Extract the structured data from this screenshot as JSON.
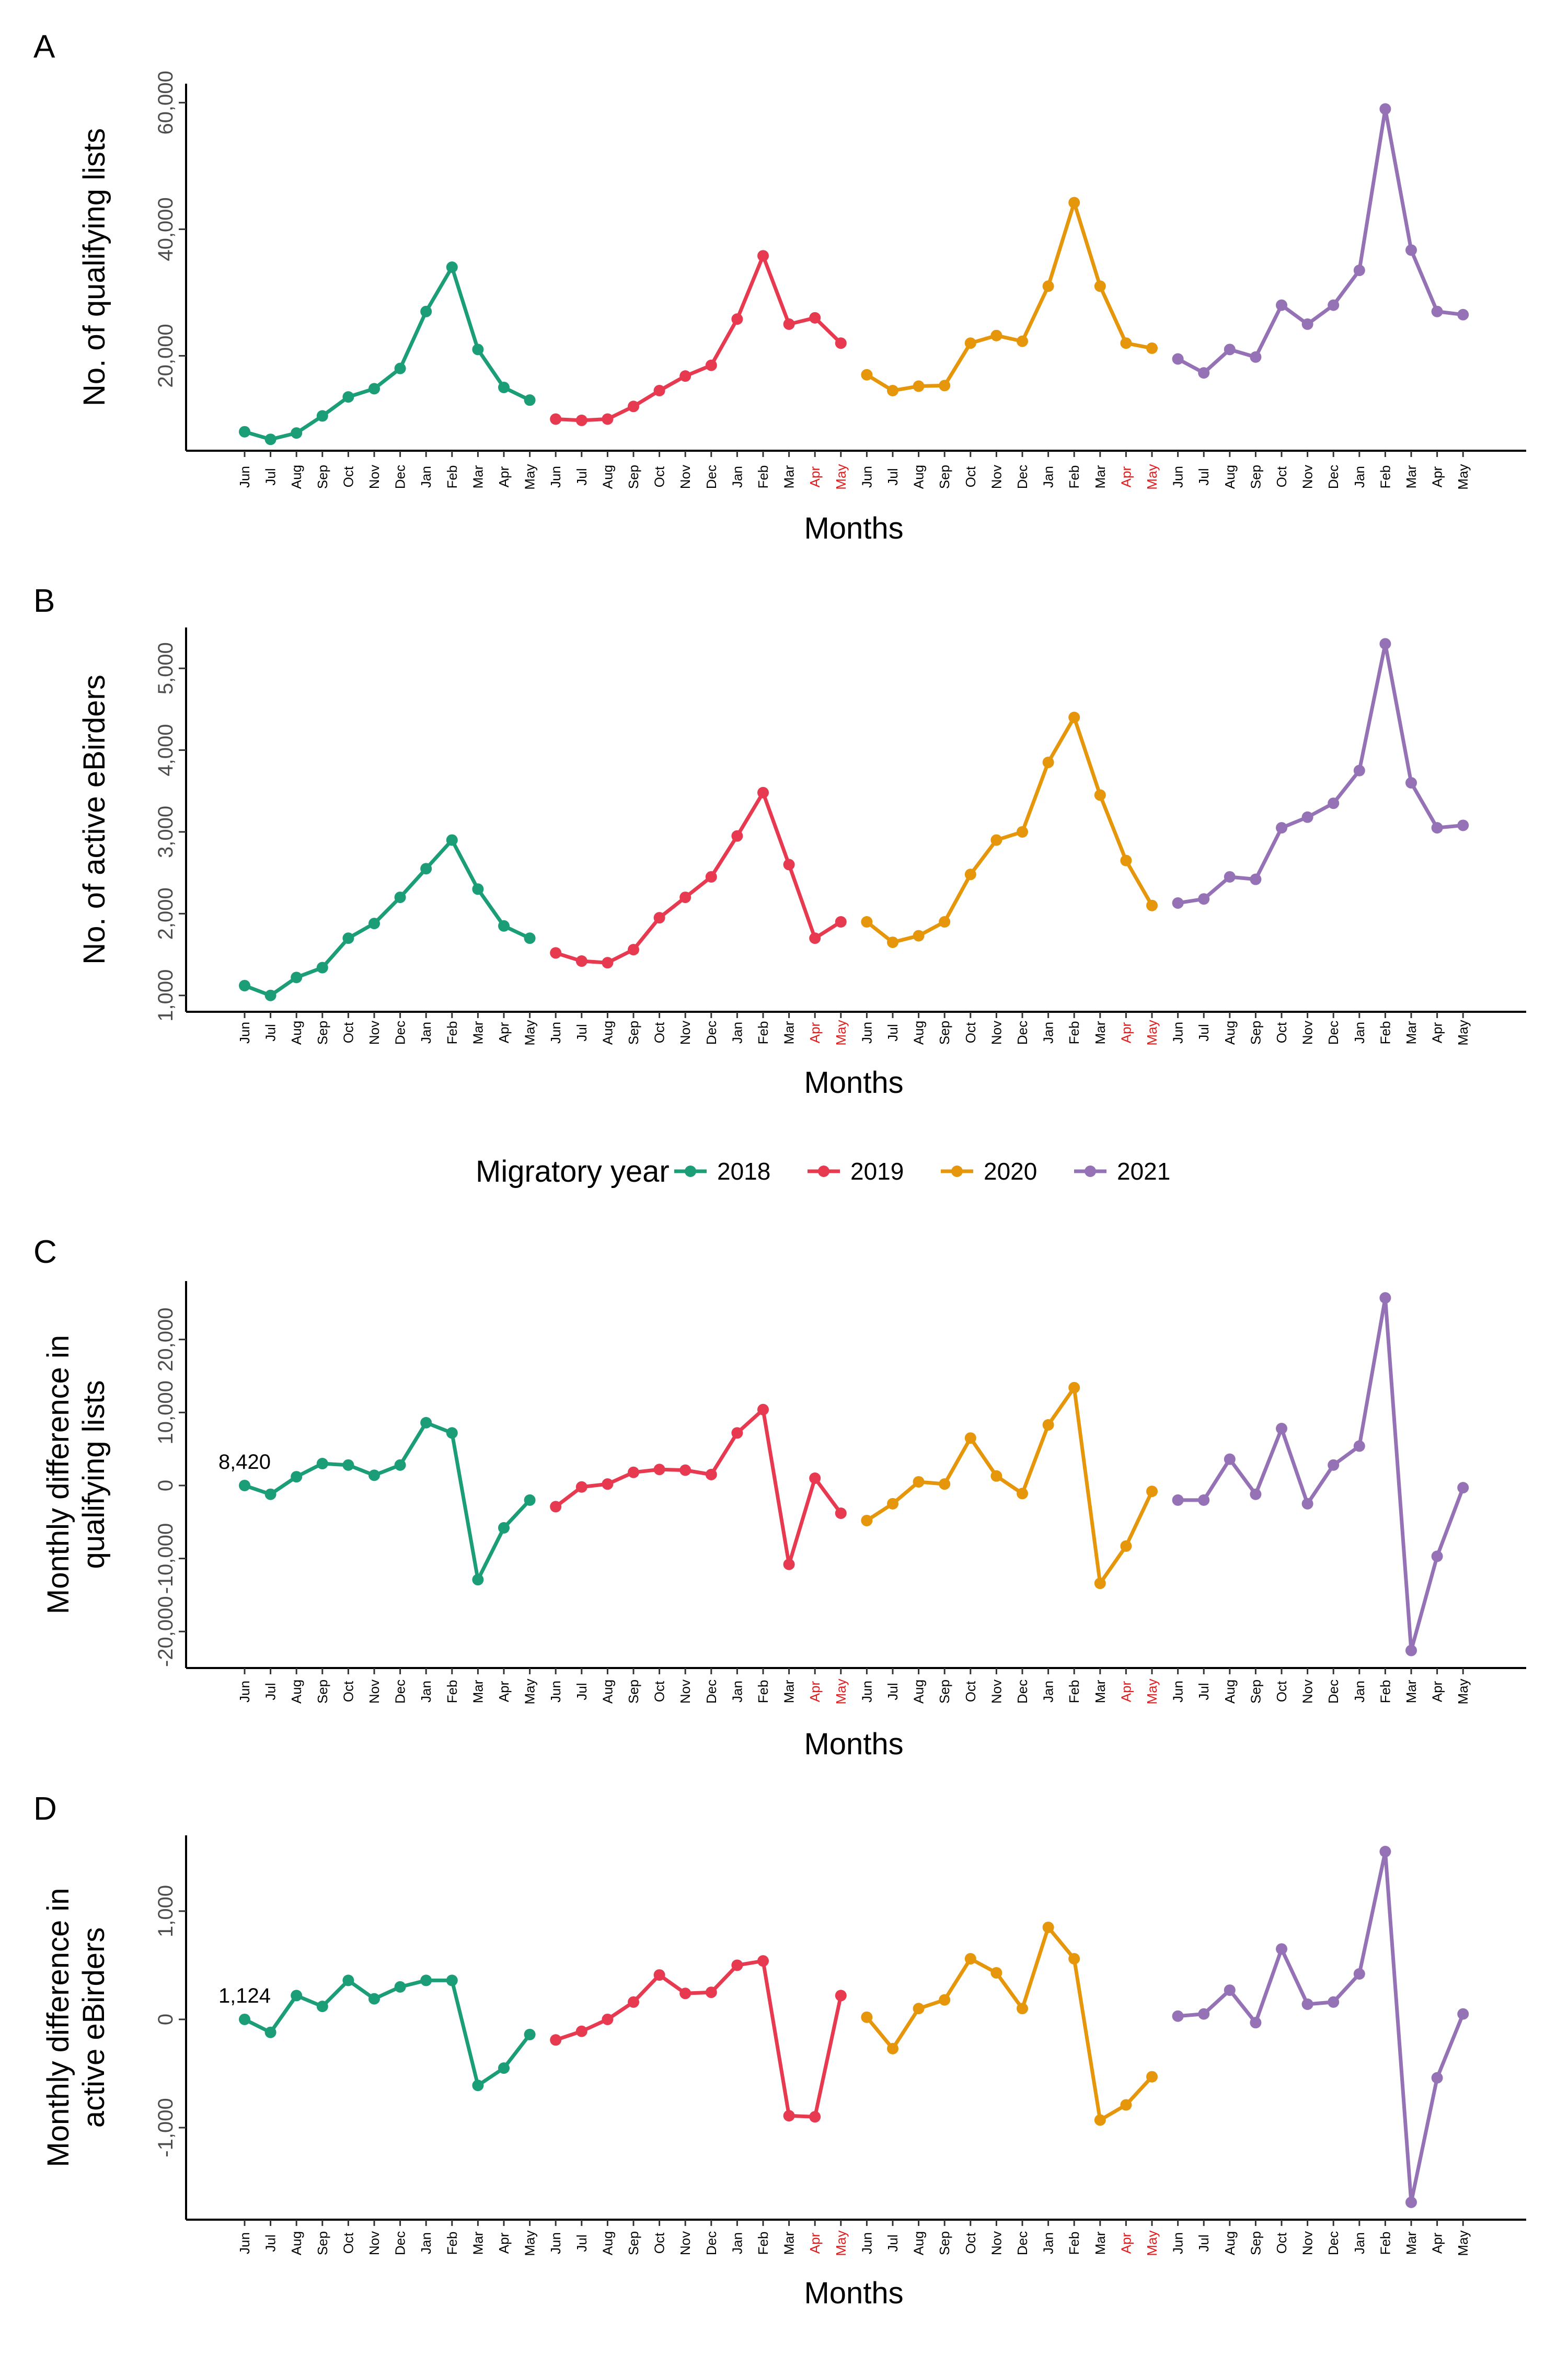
{
  "legend": {
    "title": "Migratory year",
    "items": [
      {
        "label": "2018",
        "color": "#1b9e77"
      },
      {
        "label": "2019",
        "color": "#e7394f"
      },
      {
        "label": "2020",
        "color": "#e6960a"
      },
      {
        "label": "2021",
        "color": "#9472b5"
      }
    ]
  },
  "month_labels": [
    "Jun",
    "Jul",
    "Aug",
    "Sep",
    "Oct",
    "Nov",
    "Dec",
    "Jan",
    "Feb",
    "Mar",
    "Apr",
    "May"
  ],
  "highlight_color": "#e31a1c",
  "highlighted_ticks": [
    {
      "year_index": 1,
      "months": [
        "Apr",
        "May"
      ]
    },
    {
      "year_index": 2,
      "months": [
        "Apr",
        "May"
      ]
    }
  ],
  "chart_data": [
    {
      "panel": "A",
      "type": "line",
      "xlabel": "Months",
      "ylabel": "No. of qualifying lists",
      "ylim": [
        5000,
        63000
      ],
      "yticks": [
        20000,
        40000,
        60000
      ],
      "ytick_labels": [
        "20,000",
        "40,000",
        "60,000"
      ],
      "series": [
        {
          "name": "2018",
          "values": [
            8000,
            6800,
            7800,
            10500,
            13500,
            14800,
            18000,
            27000,
            34000,
            21000,
            15000,
            13000
          ]
        },
        {
          "name": "2019",
          "values": [
            10000,
            9800,
            10000,
            12000,
            14500,
            16800,
            18500,
            25800,
            35800,
            25000,
            26000,
            22000
          ]
        },
        {
          "name": "2020",
          "values": [
            17000,
            14500,
            15200,
            15300,
            22000,
            23200,
            22300,
            31000,
            44200,
            31000,
            22000,
            21200
          ]
        },
        {
          "name": "2021",
          "values": [
            19500,
            17300,
            21000,
            19800,
            28000,
            25000,
            28000,
            33500,
            59000,
            36700,
            27000,
            26500
          ]
        }
      ]
    },
    {
      "panel": "B",
      "type": "line",
      "xlabel": "Months",
      "ylabel": "No. of active eBirders",
      "ylim": [
        800,
        5500
      ],
      "yticks": [
        1000,
        2000,
        3000,
        4000,
        5000
      ],
      "ytick_labels": [
        "1,000",
        "2,000",
        "3,000",
        "4,000",
        "5,000"
      ],
      "series": [
        {
          "name": "2018",
          "values": [
            1120,
            1000,
            1220,
            1340,
            1700,
            1880,
            2200,
            2550,
            2900,
            2300,
            1850,
            1700
          ]
        },
        {
          "name": "2019",
          "values": [
            1520,
            1420,
            1400,
            1560,
            1950,
            2200,
            2450,
            2950,
            3480,
            2600,
            1700,
            1900
          ]
        },
        {
          "name": "2020",
          "values": [
            1900,
            1650,
            1730,
            1900,
            2480,
            2900,
            3000,
            3850,
            4400,
            3450,
            2650,
            2100
          ]
        },
        {
          "name": "2021",
          "values": [
            2130,
            2180,
            2450,
            2420,
            3050,
            3180,
            3350,
            3750,
            5300,
            3600,
            3050,
            3080
          ]
        }
      ]
    },
    {
      "panel": "C",
      "type": "line",
      "xlabel": "Months",
      "ylabel": "Monthly difference in\nqualifying lists",
      "ylim": [
        -25000,
        28000
      ],
      "yticks": [
        -20000,
        -10000,
        0,
        10000,
        20000
      ],
      "ytick_labels": [
        "-20,000",
        "-10,000",
        "0",
        "10,000",
        "20,000"
      ],
      "annotation": {
        "text": "8,420",
        "series": 0,
        "index": 0
      },
      "series": [
        {
          "name": "2018",
          "values": [
            0,
            -1200,
            1200,
            3000,
            2800,
            1400,
            2800,
            8600,
            7200,
            -12900,
            -5800,
            -2000
          ]
        },
        {
          "name": "2019",
          "values": [
            -2900,
            -200,
            200,
            1800,
            2200,
            2100,
            1500,
            7200,
            10400,
            -10800,
            1000,
            -3800
          ]
        },
        {
          "name": "2020",
          "values": [
            -4800,
            -2500,
            500,
            200,
            6500,
            1300,
            -1100,
            8300,
            13400,
            -13400,
            -8300,
            -800
          ]
        },
        {
          "name": "2021",
          "values": [
            -2000,
            -2000,
            3600,
            -1200,
            7800,
            -2500,
            2800,
            5400,
            25700,
            -22600,
            -9700,
            -300
          ]
        }
      ]
    },
    {
      "panel": "D",
      "type": "line",
      "xlabel": "Months",
      "ylabel": "Monthly difference in\nactive eBirders",
      "ylim": [
        -1850,
        1700
      ],
      "yticks": [
        -1000,
        0,
        1000
      ],
      "ytick_labels": [
        "-1,000",
        "0",
        "1,000"
      ],
      "annotation": {
        "text": "1,124",
        "series": 0,
        "index": 0
      },
      "series": [
        {
          "name": "2018",
          "values": [
            0,
            -120,
            220,
            120,
            360,
            190,
            300,
            360,
            360,
            -610,
            -450,
            -140
          ]
        },
        {
          "name": "2019",
          "values": [
            -190,
            -110,
            0,
            160,
            410,
            240,
            250,
            500,
            540,
            -890,
            -900,
            220
          ]
        },
        {
          "name": "2020",
          "values": [
            20,
            -270,
            100,
            180,
            560,
            430,
            100,
            850,
            560,
            -930,
            -790,
            -530
          ]
        },
        {
          "name": "2021",
          "values": [
            30,
            50,
            270,
            -30,
            650,
            140,
            160,
            420,
            1550,
            -1690,
            -540,
            50
          ]
        }
      ]
    }
  ]
}
